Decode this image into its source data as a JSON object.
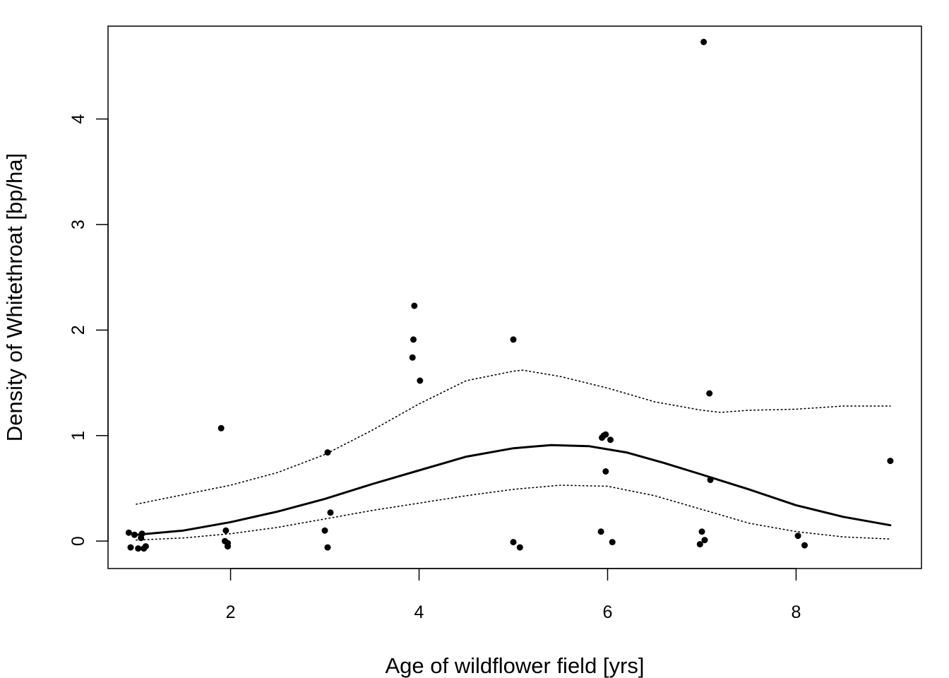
{
  "chart_data": {
    "type": "scatter",
    "title": "",
    "xlabel": "Age of wildflower field [yrs]",
    "ylabel": "Density of Whitethroat [bp/ha]",
    "xlim": [
      0.7,
      9.33
    ],
    "ylim": [
      -0.26,
      4.88
    ],
    "x_ticks": [
      2,
      4,
      6,
      8
    ],
    "y_ticks": [
      0,
      1,
      2,
      3,
      4
    ],
    "x_tick_labels": [
      "2",
      "4",
      "6",
      "8"
    ],
    "y_tick_labels": [
      "0",
      "1",
      "2",
      "3",
      "4"
    ],
    "grid": false,
    "legend": "none",
    "points": [
      {
        "x": 0.92,
        "y": 0.08
      },
      {
        "x": 0.94,
        "y": -0.06
      },
      {
        "x": 0.98,
        "y": 0.06
      },
      {
        "x": 1.02,
        "y": -0.07
      },
      {
        "x": 1.05,
        "y": 0.03
      },
      {
        "x": 1.06,
        "y": 0.07
      },
      {
        "x": 1.08,
        "y": -0.07
      },
      {
        "x": 1.1,
        "y": -0.05
      },
      {
        "x": 1.9,
        "y": 1.07
      },
      {
        "x": 1.94,
        "y": 0.0
      },
      {
        "x": 1.95,
        "y": 0.1
      },
      {
        "x": 1.97,
        "y": -0.05
      },
      {
        "x": 1.97,
        "y": -0.02
      },
      {
        "x": 3.0,
        "y": 0.1
      },
      {
        "x": 3.03,
        "y": -0.06
      },
      {
        "x": 3.03,
        "y": 0.84
      },
      {
        "x": 3.06,
        "y": 0.27
      },
      {
        "x": 3.93,
        "y": 1.74
      },
      {
        "x": 3.94,
        "y": 1.91
      },
      {
        "x": 3.95,
        "y": 2.23
      },
      {
        "x": 4.01,
        "y": 1.52
      },
      {
        "x": 5.0,
        "y": 1.91
      },
      {
        "x": 5.0,
        "y": -0.01
      },
      {
        "x": 5.07,
        "y": -0.06
      },
      {
        "x": 5.93,
        "y": 0.09
      },
      {
        "x": 5.94,
        "y": 0.98
      },
      {
        "x": 5.96,
        "y": 1.0
      },
      {
        "x": 5.98,
        "y": 1.01
      },
      {
        "x": 5.98,
        "y": 0.66
      },
      {
        "x": 6.03,
        "y": 0.96
      },
      {
        "x": 6.05,
        "y": -0.01
      },
      {
        "x": 6.98,
        "y": -0.03
      },
      {
        "x": 7.0,
        "y": 0.09
      },
      {
        "x": 7.02,
        "y": 4.73
      },
      {
        "x": 7.03,
        "y": 0.01
      },
      {
        "x": 7.08,
        "y": 1.4
      },
      {
        "x": 7.09,
        "y": 0.58
      },
      {
        "x": 8.02,
        "y": 0.05
      },
      {
        "x": 8.09,
        "y": -0.04
      },
      {
        "x": 9.0,
        "y": 0.76
      }
    ],
    "lines": [
      {
        "style": "solid",
        "x": [
          1.0,
          1.5,
          2.0,
          2.5,
          3.0,
          3.5,
          4.0,
          4.5,
          5.0,
          5.4,
          5.8,
          6.2,
          6.6,
          7.0,
          7.5,
          8.0,
          8.5,
          9.0
        ],
        "y": [
          0.06,
          0.1,
          0.18,
          0.28,
          0.4,
          0.54,
          0.67,
          0.8,
          0.88,
          0.91,
          0.9,
          0.84,
          0.74,
          0.63,
          0.49,
          0.34,
          0.23,
          0.15
        ]
      },
      {
        "style": "dotted",
        "x": [
          1.0,
          1.5,
          2.0,
          2.5,
          3.0,
          3.5,
          4.0,
          4.5,
          5.0,
          5.1,
          5.5,
          6.0,
          6.5,
          7.0,
          7.2,
          7.5,
          8.0,
          8.5,
          9.0
        ],
        "y": [
          0.35,
          0.44,
          0.53,
          0.65,
          0.82,
          1.05,
          1.3,
          1.52,
          1.61,
          1.62,
          1.56,
          1.45,
          1.32,
          1.24,
          1.22,
          1.24,
          1.25,
          1.28,
          1.28
        ]
      },
      {
        "style": "dotted",
        "x": [
          1.0,
          1.5,
          2.0,
          2.5,
          3.0,
          3.5,
          4.0,
          4.5,
          5.0,
          5.5,
          6.0,
          6.5,
          7.0,
          7.5,
          8.0,
          8.5,
          9.0
        ],
        "y": [
          0.01,
          0.03,
          0.07,
          0.13,
          0.21,
          0.29,
          0.36,
          0.43,
          0.49,
          0.53,
          0.52,
          0.43,
          0.3,
          0.17,
          0.09,
          0.04,
          0.02
        ]
      }
    ]
  }
}
